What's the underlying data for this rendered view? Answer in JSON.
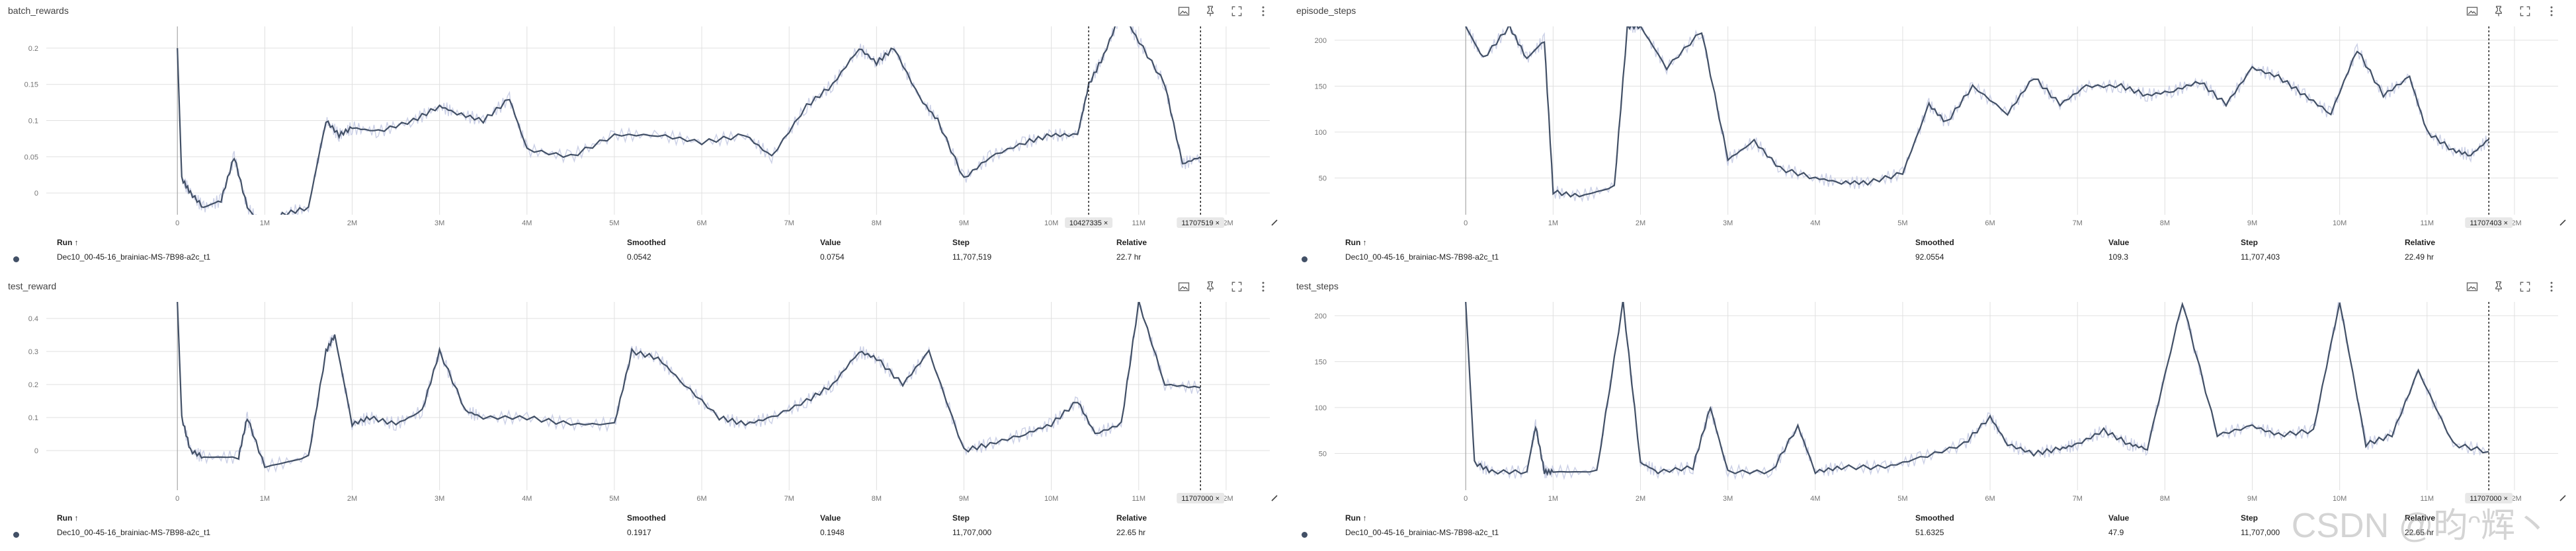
{
  "toolbar_icons": [
    "image-icon",
    "pin-icon",
    "fullscreen-icon",
    "more-vert-icon"
  ],
  "columns": {
    "run": "Run ↑",
    "smoothed": "Smoothed",
    "value": "Value",
    "step": "Step",
    "relative": "Relative"
  },
  "watermark": "CSDN @昀ᵔ辉丶",
  "colors": {
    "smoothed": "#425066",
    "raw": "#c5cbe3",
    "run_dot": "#425066"
  },
  "cards": [
    {
      "title": "batch_rewards",
      "cursor_pills": [
        {
          "label": "10427335 ×",
          "x": 10427335
        },
        {
          "label": "11707519 ×",
          "x": 11707519
        }
      ],
      "row": {
        "run": "Dec10_00-45-16_brainiac-MS-7B98-a2c_t1",
        "smoothed": "0.0542",
        "value": "0.0754",
        "step": "11,707,519",
        "relative": "22.7 hr"
      },
      "chart_data": {
        "type": "line",
        "xlabel": "",
        "ylabel": "",
        "xlim": [
          -1500000,
          12500000
        ],
        "ylim": [
          -0.03,
          0.23
        ],
        "yticks": [
          0,
          0.05,
          0.1,
          0.15,
          0.2
        ],
        "yticklabels": [
          "0",
          "0.05",
          "0.1",
          "0.15",
          "0.2"
        ],
        "xticks": [
          0,
          1000000,
          2000000,
          3000000,
          4000000,
          5000000,
          6000000,
          7000000,
          8000000,
          9000000,
          10000000,
          11000000,
          12000000
        ],
        "xticklabels": [
          "0",
          "1M",
          "2M",
          "3M",
          "4M",
          "5M",
          "6M",
          "7M",
          "8M",
          "9M",
          "10M",
          "11M",
          "12M"
        ],
        "grid": true,
        "series": [
          {
            "x": [
              0,
              50000,
              150000,
              300000,
              500000,
              650000,
              800000,
              1000000,
              1200000,
              1500000,
              1700000,
              1850000,
              2000000,
              2300000,
              2700000,
              3000000,
              3200000,
              3500000,
              3800000,
              4000000,
              4500000,
              5000000,
              5500000,
              6000000,
              6500000,
              6800000,
              7200000,
              7500000,
              7800000,
              8000000,
              8200000,
              8500000,
              8700000,
              9000000,
              9300000,
              9700000,
              10000000,
              10300000,
              10430000,
              10600000,
              10800000,
              11000000,
              11300000,
              11500000,
              11707519
            ],
            "y": [
              0.2,
              0.02,
              0,
              -0.02,
              -0.01,
              0.05,
              -0.02,
              -0.05,
              -0.03,
              -0.02,
              0.1,
              0.08,
              0.09,
              0.085,
              0.1,
              0.12,
              0.11,
              0.1,
              0.13,
              0.06,
              0.05,
              0.08,
              0.08,
              0.07,
              0.08,
              0.05,
              0.12,
              0.15,
              0.2,
              0.18,
              0.2,
              0.13,
              0.1,
              0.02,
              0.05,
              0.07,
              0.08,
              0.08,
              0.15,
              0.19,
              0.25,
              0.21,
              0.15,
              0.04,
              0.05
            ]
          }
        ]
      }
    },
    {
      "title": "episode_steps",
      "cursor_pills": [
        {
          "label": "11707403 ×",
          "x": 11707403
        }
      ],
      "row": {
        "run": "Dec10_00-45-16_brainiac-MS-7B98-a2c_t1",
        "smoothed": "92.0554",
        "value": "109.3",
        "step": "11,707,403",
        "relative": "22.49 hr"
      },
      "chart_data": {
        "type": "line",
        "xlabel": "",
        "ylabel": "",
        "xlim": [
          -1500000,
          12500000
        ],
        "ylim": [
          10,
          215
        ],
        "yticks": [
          50,
          100,
          150,
          200
        ],
        "yticklabels": [
          "50",
          "100",
          "150",
          "200"
        ],
        "xticks": [
          0,
          1000000,
          2000000,
          3000000,
          4000000,
          5000000,
          6000000,
          7000000,
          8000000,
          9000000,
          10000000,
          11000000,
          12000000
        ],
        "xticklabels": [
          "0",
          "1M",
          "2M",
          "3M",
          "4M",
          "5M",
          "6M",
          "7M",
          "8M",
          "9M",
          "10M",
          "11M",
          "12M"
        ],
        "grid": true,
        "series": [
          {
            "x": [
              0,
              200000,
              500000,
              700000,
              900000,
              1000000,
              1300000,
              1700000,
              1850000,
              2000000,
              2300000,
              2700000,
              3000000,
              3300000,
              3600000,
              4000000,
              4300000,
              4600000,
              5000000,
              5300000,
              5500000,
              5800000,
              6200000,
              6500000,
              6800000,
              7100000,
              7500000,
              7800000,
              8100000,
              8400000,
              8700000,
              9000000,
              9300000,
              9600000,
              9900000,
              10200000,
              10500000,
              10800000,
              11000000,
              11300000,
              11500000,
              11707403
            ],
            "y": [
              215,
              180,
              215,
              180,
              200,
              35,
              30,
              40,
              215,
              215,
              170,
              210,
              70,
              90,
              60,
              50,
              45,
              45,
              55,
              130,
              110,
              150,
              120,
              160,
              130,
              150,
              150,
              140,
              145,
              155,
              130,
              170,
              160,
              140,
              120,
              190,
              140,
              160,
              100,
              80,
              75,
              92
            ]
          }
        ]
      }
    },
    {
      "title": "test_reward",
      "cursor_pills": [
        {
          "label": "11707000 ×",
          "x": 11707000
        }
      ],
      "row": {
        "run": "Dec10_00-45-16_brainiac-MS-7B98-a2c_t1",
        "smoothed": "0.1917",
        "value": "0.1948",
        "step": "11,707,000",
        "relative": "22.65 hr"
      },
      "chart_data": {
        "type": "line",
        "xlabel": "",
        "ylabel": "",
        "xlim": [
          -1500000,
          12500000
        ],
        "ylim": [
          -0.12,
          0.45
        ],
        "yticks": [
          0,
          0.1,
          0.2,
          0.3,
          0.4
        ],
        "yticklabels": [
          "0",
          "0.1",
          "0.2",
          "0.3",
          "0.4"
        ],
        "xticks": [
          0,
          1000000,
          2000000,
          3000000,
          4000000,
          5000000,
          6000000,
          7000000,
          8000000,
          9000000,
          10000000,
          11000000,
          12000000
        ],
        "xticklabels": [
          "0",
          "1M",
          "2M",
          "3M",
          "4M",
          "5M",
          "6M",
          "7M",
          "8M",
          "9M",
          "10M",
          "11M",
          "12M"
        ],
        "grid": true,
        "series": [
          {
            "x": [
              0,
              50000,
              150000,
              300000,
              700000,
              800000,
              1000000,
              1500000,
              1700000,
              1800000,
              2000000,
              2200000,
              2500000,
              2800000,
              3000000,
              3300000,
              3500000,
              4000000,
              4500000,
              5000000,
              5200000,
              5500000,
              5800000,
              6200000,
              6500000,
              6800000,
              7200000,
              7500000,
              7800000,
              8000000,
              8300000,
              8600000,
              9000000,
              9300000,
              9700000,
              10000000,
              10300000,
              10500000,
              10800000,
              11000000,
              11300000,
              11707000
            ],
            "y": [
              0.45,
              0.1,
              0.0,
              -0.02,
              -0.02,
              0.1,
              -0.05,
              -0.02,
              0.3,
              0.35,
              0.08,
              0.1,
              0.08,
              0.12,
              0.3,
              0.12,
              0.1,
              0.1,
              0.08,
              0.08,
              0.3,
              0.28,
              0.2,
              0.1,
              0.08,
              0.1,
              0.15,
              0.2,
              0.3,
              0.28,
              0.2,
              0.3,
              0.0,
              0.02,
              0.05,
              0.08,
              0.15,
              0.05,
              0.08,
              0.45,
              0.2,
              0.19
            ]
          }
        ]
      }
    },
    {
      "title": "test_steps",
      "cursor_pills": [
        {
          "label": "11707000 ×",
          "x": 11707000
        }
      ],
      "row": {
        "run": "Dec10_00-45-16_brainiac-MS-7B98-a2c_t1",
        "smoothed": "51.6325",
        "value": "47.9",
        "step": "11,707,000",
        "relative": "22.65 hr"
      },
      "chart_data": {
        "type": "line",
        "xlabel": "",
        "ylabel": "",
        "xlim": [
          -1500000,
          12500000
        ],
        "ylim": [
          10,
          215
        ],
        "yticks": [
          50,
          100,
          150,
          200
        ],
        "yticklabels": [
          "50",
          "100",
          "150",
          "200"
        ],
        "xticks": [
          0,
          1000000,
          2000000,
          3000000,
          4000000,
          5000000,
          6000000,
          7000000,
          8000000,
          9000000,
          10000000,
          11000000,
          12000000
        ],
        "xticklabels": [
          "0",
          "1M",
          "2M",
          "3M",
          "4M",
          "5M",
          "6M",
          "7M",
          "8M",
          "9M",
          "10M",
          "11M",
          "12M"
        ],
        "grid": true,
        "series": [
          {
            "x": [
              0,
              100000,
              300000,
              700000,
              800000,
              900000,
              1000000,
              1500000,
              1800000,
              2000000,
              2200000,
              2600000,
              2800000,
              3000000,
              3500000,
              3800000,
              4000000,
              4300000,
              4800000,
              5200000,
              5700000,
              6000000,
              6200000,
              6500000,
              6800000,
              7000000,
              7300000,
              7600000,
              7800000,
              8200000,
              8600000,
              9000000,
              9300000,
              9700000,
              10000000,
              10300000,
              10600000,
              10900000,
              11300000,
              11707000
            ],
            "y": [
              215,
              40,
              30,
              30,
              80,
              30,
              30,
              30,
              215,
              40,
              30,
              35,
              100,
              30,
              30,
              80,
              30,
              35,
              35,
              45,
              60,
              90,
              60,
              50,
              55,
              60,
              75,
              60,
              55,
              215,
              70,
              80,
              70,
              75,
              215,
              60,
              70,
              140,
              60,
              52
            ]
          }
        ]
      }
    }
  ]
}
